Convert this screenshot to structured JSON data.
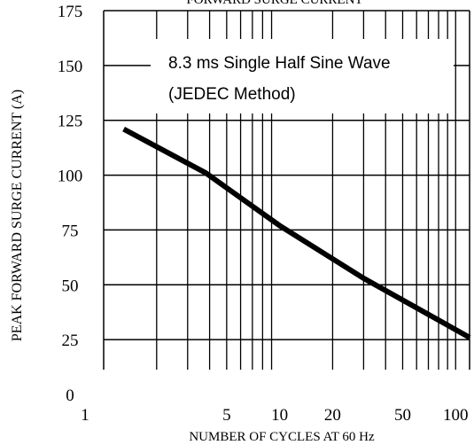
{
  "chart_data": {
    "type": "line",
    "title": "FORWARD SURGE CURRENT",
    "xlabel": "NUMBER OF CYCLES AT 60 Hz",
    "ylabel": "PEAK FORWARD SURGE CURRENT (A)",
    "xscale": "log",
    "xlim": [
      1,
      120
    ],
    "ylim": [
      0,
      175
    ],
    "grid": true,
    "x_ticks": [
      {
        "value": 1,
        "label": "1"
      },
      {
        "value": 5,
        "label": "5"
      },
      {
        "value": 10,
        "label": "10"
      },
      {
        "value": 20,
        "label": "20"
      },
      {
        "value": 50,
        "label": "50"
      },
      {
        "value": 100,
        "label": "100"
      }
    ],
    "y_ticks": [
      {
        "value": 0,
        "label": "0"
      },
      {
        "value": 25,
        "label": "25"
      },
      {
        "value": 50,
        "label": "50"
      },
      {
        "value": 75,
        "label": "75"
      },
      {
        "value": 100,
        "label": "100"
      },
      {
        "value": 125,
        "label": "125"
      },
      {
        "value": 150,
        "label": "150"
      },
      {
        "value": 175,
        "label": "175"
      }
    ],
    "annotation": [
      "8.3 ms Single Half Sine Wave",
      "(JEDEC Method)"
    ],
    "series": [
      {
        "x": [
          1.3,
          3.8,
          10,
          30,
          120
        ],
        "y": [
          121,
          101,
          77,
          53,
          26
        ]
      }
    ]
  }
}
